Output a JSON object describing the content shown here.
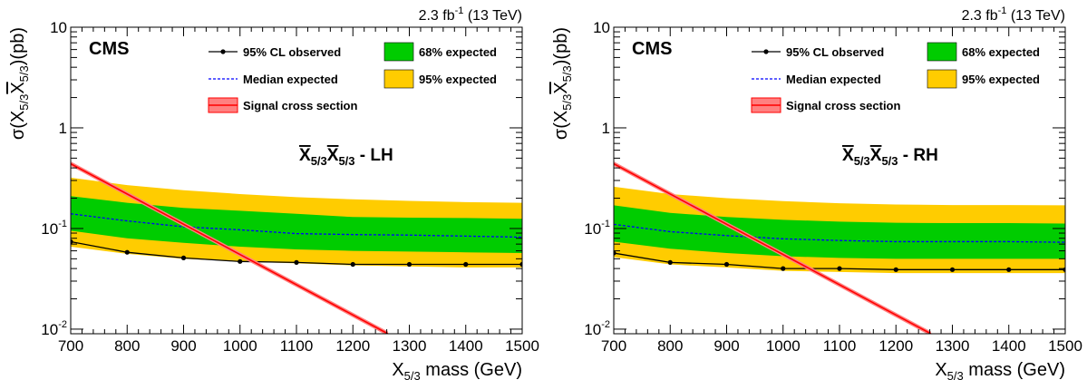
{
  "chart_data": [
    {
      "type": "line",
      "lumi_label": "2.3 fb",
      "lumi_sup": "-1",
      "energy_label": " (13 TeV)",
      "experiment": "CMS",
      "channel_main": "X",
      "channel_sub": "5/3",
      "channel_suffix": " - LH",
      "xlabel_main": "X",
      "xlabel_sub": "5/3",
      "xlabel_rest": " mass (GeV)",
      "ylabel_prefix": "σ(X",
      "ylabel_sub1": "5/3",
      "ylabel_bar": "X",
      "ylabel_sub2": "5/3",
      "ylabel_suffix": ")(pb)",
      "xlim": [
        700,
        1500
      ],
      "ylim": [
        0.009,
        10
      ],
      "y_scale": "log",
      "x_ticks": [
        "700",
        "800",
        "900",
        "1000",
        "1100",
        "1200",
        "1300",
        "1400",
        "1500"
      ],
      "y_ticks": [
        {
          "value": 10,
          "base": "10",
          "exp": ""
        },
        {
          "value": 1,
          "base": "1",
          "exp": ""
        },
        {
          "value": 0.1,
          "base": "10",
          "exp": "-1"
        },
        {
          "value": 0.01,
          "base": "10",
          "exp": "-2"
        }
      ],
      "legend": {
        "observed": "95% CL observed",
        "median": "Median expected",
        "band68": "68% expected",
        "band95": "95% expected",
        "signal": "Signal cross section"
      },
      "x": [
        700,
        800,
        900,
        1000,
        1100,
        1200,
        1300,
        1400,
        1500
      ],
      "observed": [
        0.074,
        0.058,
        0.051,
        0.047,
        0.046,
        0.044,
        0.044,
        0.044,
        0.044
      ],
      "median": [
        0.14,
        0.119,
        0.104,
        0.097,
        0.089,
        0.087,
        0.086,
        0.084,
        0.082
      ],
      "band68_low": [
        0.095,
        0.08,
        0.072,
        0.066,
        0.062,
        0.06,
        0.059,
        0.058,
        0.057
      ],
      "band68_high": [
        0.21,
        0.18,
        0.16,
        0.15,
        0.14,
        0.13,
        0.128,
        0.127,
        0.125
      ],
      "band95_low": [
        0.066,
        0.056,
        0.05,
        0.047,
        0.045,
        0.043,
        0.042,
        0.041,
        0.041
      ],
      "band95_high": [
        0.32,
        0.27,
        0.24,
        0.22,
        0.205,
        0.195,
        0.188,
        0.183,
        0.18
      ],
      "signal_x": [
        700,
        1262
      ],
      "signal_y": [
        0.44,
        0.009
      ]
    },
    {
      "type": "line",
      "lumi_label": "2.3 fb",
      "lumi_sup": "-1",
      "energy_label": " (13 TeV)",
      "experiment": "CMS",
      "channel_main": "X",
      "channel_sub": "5/3",
      "channel_suffix": " - RH",
      "xlabel_main": "X",
      "xlabel_sub": "5/3",
      "xlabel_rest": " mass (GeV)",
      "ylabel_prefix": "σ(X",
      "ylabel_sub1": "5/3",
      "ylabel_bar": "X",
      "ylabel_sub2": "5/3",
      "ylabel_suffix": ")(pb)",
      "xlim": [
        700,
        1500
      ],
      "ylim": [
        0.009,
        10
      ],
      "y_scale": "log",
      "x_ticks": [
        "700",
        "800",
        "900",
        "1000",
        "1100",
        "1200",
        "1300",
        "1400",
        "1500"
      ],
      "y_ticks": [
        {
          "value": 10,
          "base": "10",
          "exp": ""
        },
        {
          "value": 1,
          "base": "1",
          "exp": ""
        },
        {
          "value": 0.1,
          "base": "10",
          "exp": "-1"
        },
        {
          "value": 0.01,
          "base": "10",
          "exp": "-2"
        }
      ],
      "legend": {
        "observed": "95% CL observed",
        "median": "Median expected",
        "band68": "68% expected",
        "band95": "95% expected",
        "signal": "Signal cross section"
      },
      "x": [
        700,
        800,
        900,
        1000,
        1100,
        1200,
        1300,
        1400,
        1500
      ],
      "observed": [
        0.057,
        0.046,
        0.044,
        0.04,
        0.04,
        0.039,
        0.039,
        0.039,
        0.039
      ],
      "median": [
        0.11,
        0.093,
        0.085,
        0.079,
        0.076,
        0.074,
        0.074,
        0.074,
        0.073
      ],
      "band68_low": [
        0.074,
        0.063,
        0.057,
        0.053,
        0.051,
        0.05,
        0.05,
        0.05,
        0.05
      ],
      "band68_high": [
        0.17,
        0.143,
        0.13,
        0.122,
        0.117,
        0.114,
        0.113,
        0.113,
        0.112
      ],
      "band95_low": [
        0.052,
        0.044,
        0.041,
        0.038,
        0.037,
        0.036,
        0.036,
        0.036,
        0.036
      ],
      "band95_high": [
        0.26,
        0.22,
        0.2,
        0.187,
        0.178,
        0.173,
        0.171,
        0.171,
        0.17
      ],
      "signal_x": [
        700,
        1262
      ],
      "signal_y": [
        0.44,
        0.009
      ]
    }
  ]
}
